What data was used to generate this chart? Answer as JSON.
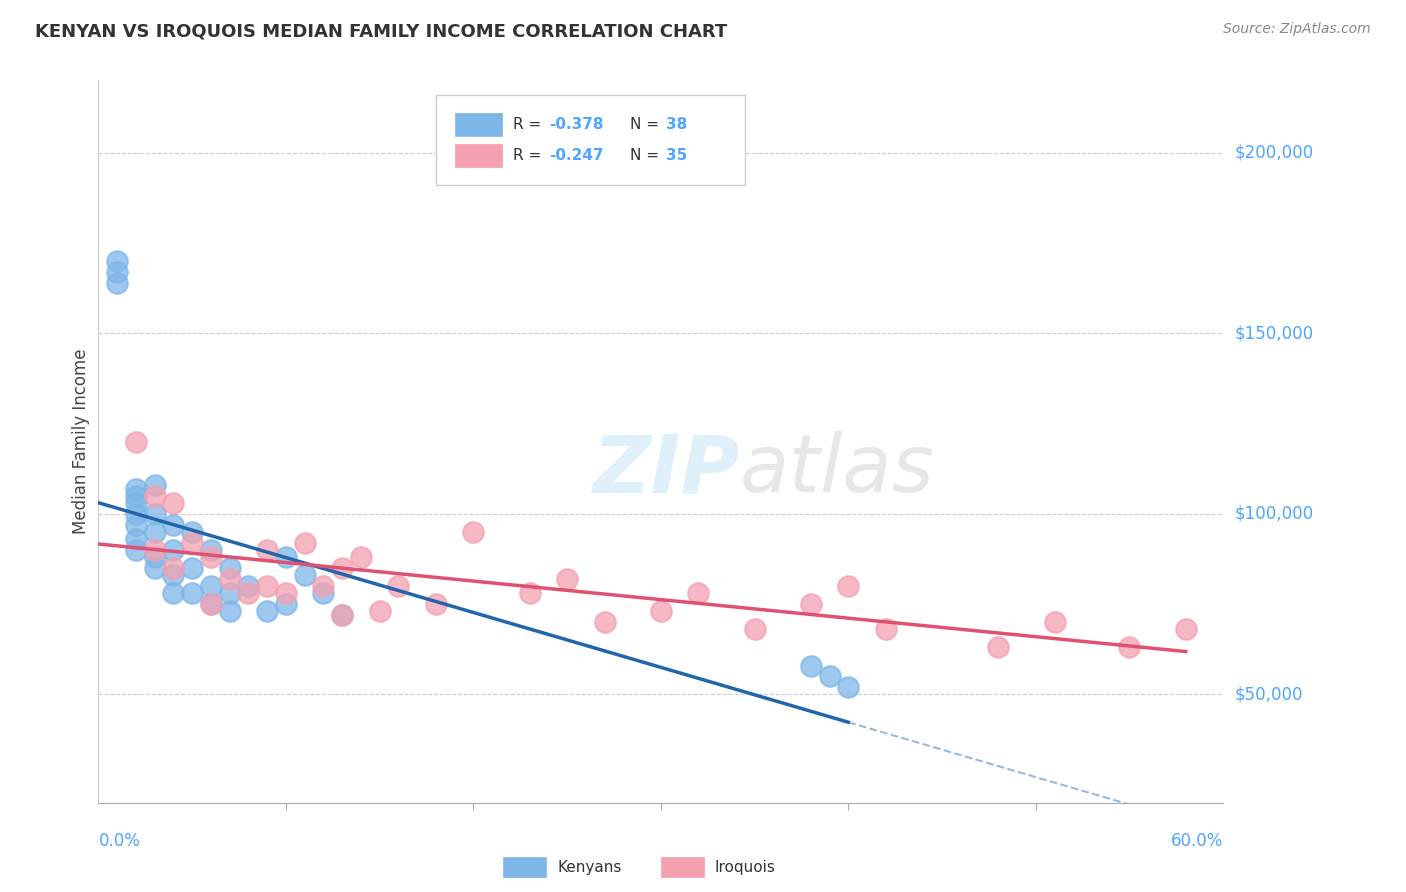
{
  "title": "KENYAN VS IROQUOIS MEDIAN FAMILY INCOME CORRELATION CHART",
  "source": "Source: ZipAtlas.com",
  "ylabel": "Median Family Income",
  "y_ticks": [
    50000,
    100000,
    150000,
    200000
  ],
  "y_tick_labels": [
    "$50,000",
    "$100,000",
    "$150,000",
    "$200,000"
  ],
  "xlim": [
    0.0,
    0.6
  ],
  "ylim": [
    20000,
    220000
  ],
  "kenyan_R": "-0.378",
  "kenyan_N": "38",
  "iroquois_R": "-0.247",
  "iroquois_N": "35",
  "kenyan_color": "#7EB6E8",
  "iroquois_color": "#F4A0B0",
  "kenyan_line_color": "#2166AC",
  "iroquois_line_color": "#E05070",
  "watermark_zip": "ZIP",
  "watermark_atlas": "atlas",
  "accent_color": "#4da6ff",
  "kenyan_x": [
    0.01,
    0.01,
    0.01,
    0.02,
    0.02,
    0.02,
    0.02,
    0.02,
    0.02,
    0.02,
    0.03,
    0.03,
    0.03,
    0.03,
    0.03,
    0.04,
    0.04,
    0.04,
    0.04,
    0.05,
    0.05,
    0.05,
    0.06,
    0.06,
    0.06,
    0.07,
    0.07,
    0.07,
    0.08,
    0.09,
    0.1,
    0.1,
    0.11,
    0.12,
    0.13,
    0.38,
    0.39,
    0.4
  ],
  "kenyan_y": [
    170000,
    167000,
    164000,
    107000,
    105000,
    103000,
    100000,
    97000,
    93000,
    90000,
    108000,
    100000,
    95000,
    88000,
    85000,
    97000,
    90000,
    83000,
    78000,
    95000,
    85000,
    78000,
    90000,
    80000,
    75000,
    85000,
    78000,
    73000,
    80000,
    73000,
    88000,
    75000,
    83000,
    78000,
    72000,
    58000,
    55000,
    52000
  ],
  "iroquois_x": [
    0.02,
    0.03,
    0.03,
    0.04,
    0.04,
    0.05,
    0.06,
    0.06,
    0.07,
    0.08,
    0.09,
    0.09,
    0.1,
    0.11,
    0.12,
    0.13,
    0.13,
    0.14,
    0.15,
    0.16,
    0.18,
    0.2,
    0.23,
    0.25,
    0.27,
    0.3,
    0.32,
    0.35,
    0.38,
    0.4,
    0.42,
    0.48,
    0.51,
    0.55,
    0.58
  ],
  "iroquois_y": [
    120000,
    105000,
    90000,
    103000,
    85000,
    92000,
    88000,
    75000,
    82000,
    78000,
    90000,
    80000,
    78000,
    92000,
    80000,
    85000,
    72000,
    88000,
    73000,
    80000,
    75000,
    95000,
    78000,
    82000,
    70000,
    73000,
    78000,
    68000,
    75000,
    80000,
    68000,
    63000,
    70000,
    63000,
    68000
  ]
}
